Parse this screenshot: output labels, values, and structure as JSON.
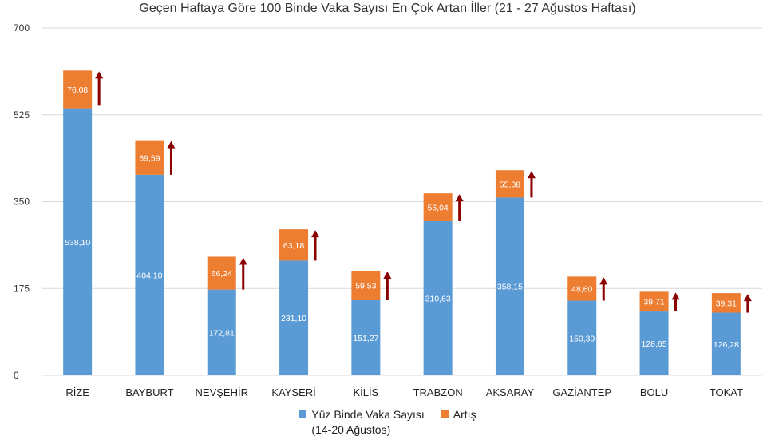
{
  "chart_data": {
    "type": "bar",
    "stacked": true,
    "title": "Geçen Haftaya Göre 100 Binde Vaka Sayısı En Çok Artan İller (21 - 27 Ağustos Haftası)",
    "categories": [
      "RİZE",
      "BAYBURT",
      "NEVŞEHİR",
      "KAYSERİ",
      "KİLİS",
      "TRABZON",
      "AKSARAY",
      "GAZİANTEP",
      "BOLU",
      "TOKAT"
    ],
    "series": [
      {
        "name": "Yüz Binde Vaka Sayısı (14-20 Ağustos)",
        "legend_lines": [
          "Yüz Binde Vaka Sayısı",
          "(14-20 Ağustos)"
        ],
        "color": "#5b9bd5",
        "values": [
          538.1,
          404.1,
          172.81,
          231.1,
          151.27,
          310.63,
          358.15,
          150.39,
          128.65,
          126.28
        ],
        "labels": [
          "538,10",
          "404,10",
          "172,81",
          "231,10",
          "151,27",
          "310,63",
          "358,15",
          "150,39",
          "128,65",
          "126,28"
        ]
      },
      {
        "name": "Artış",
        "legend_lines": [
          "Artış"
        ],
        "color": "#ed7d31",
        "values": [
          76.08,
          69.59,
          66.24,
          63.18,
          59.53,
          56.04,
          55.08,
          48.6,
          39.71,
          39.31
        ],
        "labels": [
          "76,08",
          "69,59",
          "66,24",
          "63,18",
          "59,53",
          "56,04",
          "55,08",
          "48,60",
          "39,71",
          "39,31"
        ]
      }
    ],
    "ylim": [
      0,
      700
    ],
    "yticks": [
      0,
      175,
      350,
      525,
      700
    ],
    "grid": true,
    "legend_position": "bottom",
    "arrow_color": "#8b0000"
  }
}
